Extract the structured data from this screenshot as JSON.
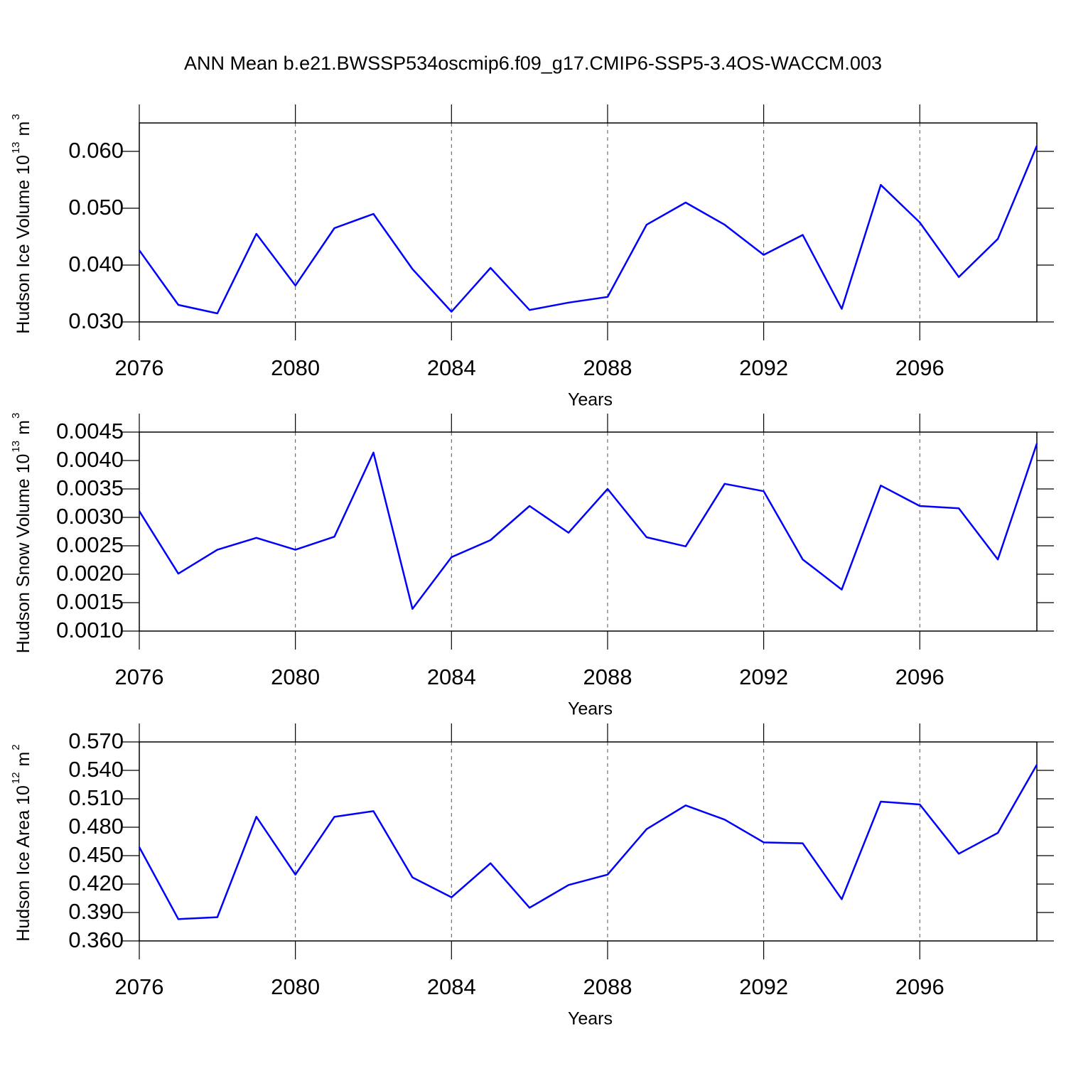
{
  "title": "ANN Mean b.e21.BWSSP534oscmip6.f09_g17.CMIP6-SSP5-3.4OS-WACCM.003",
  "chart_data": [
    {
      "type": "line",
      "ylabel": [
        "Hudson Ice Volume 10",
        "13",
        "m",
        "3"
      ],
      "xlabel": "Years",
      "grid": true,
      "x": [
        2076,
        2077,
        2078,
        2079,
        2080,
        2081,
        2082,
        2083,
        2084,
        2085,
        2086,
        2087,
        2088,
        2089,
        2090,
        2091,
        2092,
        2093,
        2094,
        2095,
        2096,
        2097,
        2098,
        2099
      ],
      "series": [
        {
          "color": "#0000ff",
          "values": [
            0.0426,
            0.033,
            0.0315,
            0.0455,
            0.0364,
            0.0465,
            0.049,
            0.0393,
            0.0318,
            0.0395,
            0.0321,
            0.0334,
            0.0344,
            0.0471,
            0.051,
            0.0471,
            0.0418,
            0.0453,
            0.0323,
            0.0541,
            0.0475,
            0.0379,
            0.0446,
            0.061
          ]
        }
      ],
      "xlim": [
        2076,
        2099
      ],
      "xticks": [
        2076,
        2080,
        2084,
        2088,
        2092,
        2096
      ],
      "ylim": [
        0.03,
        0.065
      ],
      "yticks": [
        {
          "value": 0.03,
          "label": "0.030"
        },
        {
          "value": 0.04,
          "label": "0.040"
        },
        {
          "value": 0.05,
          "label": "0.050"
        },
        {
          "value": 0.06,
          "label": "0.060"
        }
      ]
    },
    {
      "type": "line",
      "ylabel": [
        "Hudson Snow Volume 10",
        "13",
        "m",
        "3"
      ],
      "xlabel": "Years",
      "grid": true,
      "x": [
        2076,
        2077,
        2078,
        2079,
        2080,
        2081,
        2082,
        2083,
        2084,
        2085,
        2086,
        2087,
        2088,
        2089,
        2090,
        2091,
        2092,
        2093,
        2094,
        2095,
        2096,
        2097,
        2098,
        2099
      ],
      "series": [
        {
          "color": "#0000ff",
          "values": [
            0.00311,
            0.00201,
            0.00243,
            0.00264,
            0.00243,
            0.00266,
            0.00414,
            0.00139,
            0.0023,
            0.0026,
            0.0032,
            0.00273,
            0.0035,
            0.00265,
            0.00249,
            0.00359,
            0.00346,
            0.00226,
            0.00173,
            0.00356,
            0.0032,
            0.00316,
            0.00226,
            0.0043
          ]
        }
      ],
      "xlim": [
        2076,
        2099
      ],
      "xticks": [
        2076,
        2080,
        2084,
        2088,
        2092,
        2096
      ],
      "ylim": [
        0.001,
        0.0045
      ],
      "yticks": [
        {
          "value": 0.001,
          "label": "0.0010"
        },
        {
          "value": 0.0015,
          "label": "0.0015"
        },
        {
          "value": 0.002,
          "label": "0.0020"
        },
        {
          "value": 0.0025,
          "label": "0.0025"
        },
        {
          "value": 0.003,
          "label": "0.0030"
        },
        {
          "value": 0.0035,
          "label": "0.0035"
        },
        {
          "value": 0.004,
          "label": "0.0040"
        },
        {
          "value": 0.0045,
          "label": "0.0045"
        }
      ]
    },
    {
      "type": "line",
      "ylabel": [
        "Hudson Ice Area 10",
        "12",
        "m",
        "2"
      ],
      "xlabel": "Years",
      "grid": true,
      "x": [
        2076,
        2077,
        2078,
        2079,
        2080,
        2081,
        2082,
        2083,
        2084,
        2085,
        2086,
        2087,
        2088,
        2089,
        2090,
        2091,
        2092,
        2093,
        2094,
        2095,
        2096,
        2097,
        2098,
        2099
      ],
      "series": [
        {
          "color": "#0000ff",
          "values": [
            0.459,
            0.383,
            0.385,
            0.491,
            0.43,
            0.491,
            0.497,
            0.427,
            0.406,
            0.442,
            0.395,
            0.419,
            0.43,
            0.478,
            0.503,
            0.488,
            0.464,
            0.463,
            0.404,
            0.507,
            0.504,
            0.452,
            0.474,
            0.546
          ]
        }
      ],
      "xlim": [
        2076,
        2099
      ],
      "xticks": [
        2076,
        2080,
        2084,
        2088,
        2092,
        2096
      ],
      "ylim": [
        0.36,
        0.57
      ],
      "yticks": [
        {
          "value": 0.36,
          "label": "0.360"
        },
        {
          "value": 0.39,
          "label": "0.390"
        },
        {
          "value": 0.42,
          "label": "0.420"
        },
        {
          "value": 0.45,
          "label": "0.450"
        },
        {
          "value": 0.48,
          "label": "0.480"
        },
        {
          "value": 0.51,
          "label": "0.510"
        },
        {
          "value": 0.54,
          "label": "0.540"
        },
        {
          "value": 0.57,
          "label": "0.570"
        }
      ]
    }
  ]
}
